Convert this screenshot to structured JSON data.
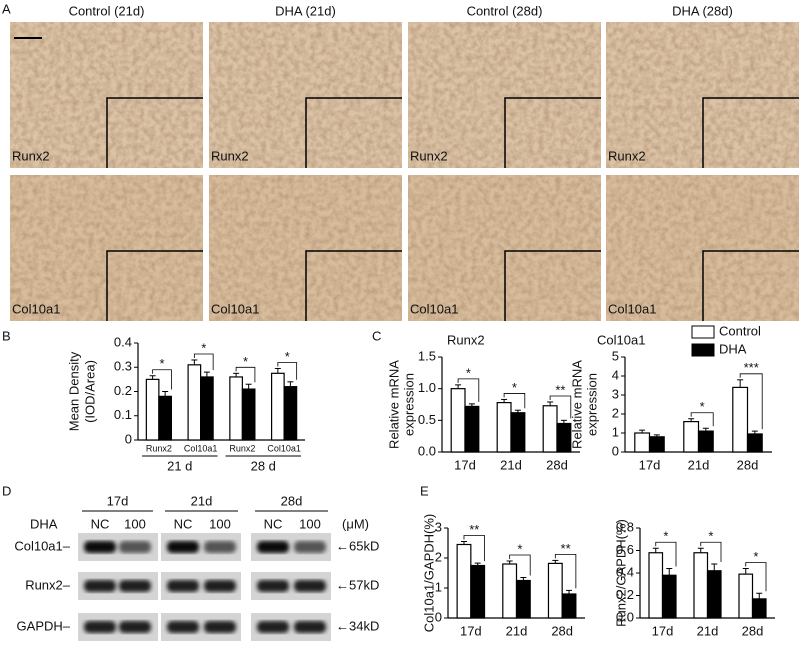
{
  "panel_labels": [
    "A",
    "B",
    "C",
    "D",
    "E"
  ],
  "micrographs": {
    "columns": [
      "Control (21d)",
      "DHA (21d)",
      "Control (28d)",
      "DHA (28d)"
    ],
    "rows": [
      "Runx2",
      "Col10a1"
    ]
  },
  "western_blot": {
    "times": [
      "17d",
      "21d",
      "28d"
    ],
    "treatment_label": "DHA",
    "doses": [
      "NC",
      "100"
    ],
    "unit": "(μM)",
    "proteins": [
      "Col10a1–",
      "Runx2–",
      "GAPDH–"
    ],
    "sizes": [
      "←65kD",
      "←57kD",
      "←34kD"
    ]
  },
  "chart_data": [
    {
      "type": "bar",
      "ylabel": [
        "Mean Density",
        "(IOD/Area)"
      ],
      "categories": [
        "Runx2",
        "Col10a1",
        "Runx2",
        "Col10a1"
      ],
      "groups": [
        "21 d",
        "28 d"
      ],
      "series": [
        {
          "color": "#ffffff",
          "values": [
            0.25,
            0.31,
            0.26,
            0.275
          ],
          "errors": [
            0.015,
            0.02,
            0.015,
            0.02
          ]
        },
        {
          "color": "#000000",
          "values": [
            0.18,
            0.26,
            0.21,
            0.22
          ],
          "errors": [
            0.02,
            0.02,
            0.02,
            0.02
          ]
        }
      ],
      "annotations": [
        "*",
        "*",
        "*",
        "*"
      ],
      "ylim": [
        0,
        0.4
      ],
      "yticks": [
        0,
        0.1,
        0.2,
        0.3,
        0.4
      ]
    },
    {
      "type": "bar",
      "title": "Runx2",
      "ylabel": [
        "Relative mRNA",
        "expression"
      ],
      "categories": [
        "17d",
        "21d",
        "28d"
      ],
      "series": [
        {
          "color": "#ffffff",
          "values": [
            1.0,
            0.78,
            0.73
          ],
          "errors": [
            0.06,
            0.05,
            0.06
          ]
        },
        {
          "color": "#000000",
          "values": [
            0.72,
            0.62,
            0.45
          ],
          "errors": [
            0.04,
            0.04,
            0.05
          ]
        }
      ],
      "annotations": [
        "*",
        "*",
        "**"
      ],
      "ylim": [
        0,
        1.5
      ],
      "yticks": [
        {
          "value": 0,
          "label": "0.0"
        },
        0.5,
        {
          "value": 1,
          "label": "1.0"
        },
        1.5
      ]
    },
    {
      "type": "bar",
      "title": "Col10a1",
      "ylabel": [
        "Relative mRNA",
        "expression"
      ],
      "categories": [
        "17d",
        "21d",
        "28d"
      ],
      "series": [
        {
          "name": "Control",
          "color": "#ffffff",
          "values": [
            1.0,
            1.6,
            3.4
          ],
          "errors": [
            0.15,
            0.15,
            0.4
          ]
        },
        {
          "name": "DHA",
          "color": "#000000",
          "values": [
            0.8,
            1.1,
            0.95
          ],
          "errors": [
            0.1,
            0.15,
            0.15
          ]
        }
      ],
      "annotations": [
        null,
        "*",
        "***"
      ],
      "ylim": [
        0,
        5
      ],
      "yticks": [
        0,
        1,
        2,
        3,
        4,
        5
      ]
    },
    {
      "type": "bar",
      "ylabel": [
        "Col10a1/GAPDH(%)"
      ],
      "categories": [
        "17d",
        "21d",
        "28d"
      ],
      "series": [
        {
          "color": "#ffffff",
          "values": [
            2.45,
            1.8,
            1.82
          ],
          "errors": [
            0.1,
            0.1,
            0.1
          ]
        },
        {
          "color": "#000000",
          "values": [
            1.75,
            1.25,
            0.8
          ],
          "errors": [
            0.08,
            0.1,
            0.12
          ]
        }
      ],
      "annotations": [
        "**",
        "*",
        "**"
      ],
      "ylim": [
        0,
        3
      ],
      "yticks": [
        0,
        1,
        2,
        3
      ]
    },
    {
      "type": "bar",
      "ylabel": [
        "Runx2/GAPDH(%)"
      ],
      "categories": [
        "17d",
        "21d",
        "28d"
      ],
      "series": [
        {
          "color": "#ffffff",
          "values": [
            0.58,
            0.58,
            0.39
          ],
          "errors": [
            0.04,
            0.04,
            0.05
          ]
        },
        {
          "color": "#000000",
          "values": [
            0.38,
            0.42,
            0.17
          ],
          "errors": [
            0.06,
            0.06,
            0.05
          ]
        }
      ],
      "annotations": [
        "*",
        "*",
        "*"
      ],
      "ylim": [
        0,
        0.8
      ],
      "yticks": [
        {
          "value": 0,
          "label": "0.0"
        },
        0.2,
        0.4,
        0.6,
        0.8
      ]
    }
  ]
}
